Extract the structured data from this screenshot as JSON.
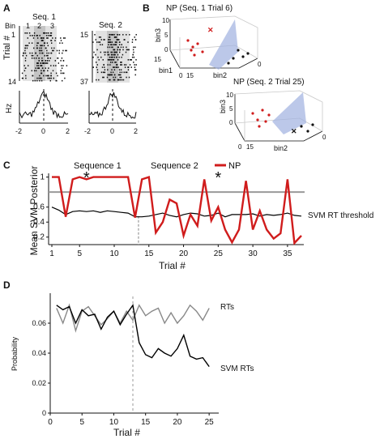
{
  "panel_letters": {
    "a": "A",
    "b": "B",
    "c": "C",
    "d": "D"
  },
  "panel_a": {
    "seq1_title": "Seq. 1",
    "seq2_title": "Seq. 2",
    "bin_label": "Bin",
    "bin_numbers": [
      "1",
      "2",
      "3"
    ],
    "trial_axis_label": "Trial #",
    "seq1_trial_ticks": [
      "1",
      "14"
    ],
    "seq2_trial_ticks": [
      "15",
      "37"
    ],
    "hz_label": "Hz",
    "x_ticks": [
      "-2",
      "0",
      "2"
    ]
  },
  "panel_b": {
    "plot1_title": "NP (Seq. 1 Trial 6)",
    "plot2_title": "NP (Seq. 2 Trial 25)",
    "axis_bin1": "bin1",
    "axis_bin2": "bin2",
    "axis_bin3": "bin3",
    "tick_0": "0",
    "tick_5": "5",
    "tick_10": "10",
    "tick_15": "15"
  },
  "panel_c": {
    "label_seq1": "Sequence 1",
    "label_seq2": "Sequence 2",
    "legend_np": "NP",
    "threshold_label": "SVM RT threshold",
    "star": "*"
  },
  "panel_d": {
    "label_rts": "RTs",
    "label_svm_rts": "SVM RTs"
  },
  "colors": {
    "np": "#d01c1c",
    "svm": "#000000",
    "threshold": "#9a9a9a",
    "rts": "#888888",
    "shade_light": "#e2e2e2",
    "shade_dark": "#c4c4c4",
    "plane": "#9fb0e0"
  },
  "chart_data": [
    {
      "type": "line",
      "panel": "C",
      "xlabel": "Trial #",
      "ylabel": "Mean SVM Posterior",
      "xlim": [
        1,
        37
      ],
      "ylim": [
        0.1,
        1.05
      ],
      "xticks": [
        1,
        5,
        10,
        15,
        20,
        25,
        30,
        35
      ],
      "yticks": [
        0.2,
        0.4,
        0.6,
        1
      ],
      "threshold": 0.8,
      "sequence_boundary": 13.5,
      "star_trials": [
        6,
        25
      ],
      "x": [
        1,
        2,
        3,
        4,
        5,
        6,
        7,
        8,
        9,
        10,
        11,
        12,
        13,
        14,
        15,
        16,
        17,
        18,
        19,
        20,
        21,
        22,
        23,
        24,
        25,
        26,
        27,
        28,
        29,
        30,
        31,
        32,
        33,
        34,
        35,
        36,
        37
      ],
      "series": [
        {
          "name": "NP",
          "values": [
            1.0,
            1.0,
            0.47,
            0.97,
            1.0,
            0.97,
            1.0,
            1.0,
            1.0,
            1.0,
            1.0,
            1.0,
            0.46,
            0.97,
            1.0,
            0.26,
            0.4,
            0.7,
            0.65,
            0.22,
            0.5,
            0.35,
            0.97,
            0.42,
            0.6,
            0.3,
            0.13,
            0.3,
            0.95,
            0.3,
            0.55,
            0.3,
            0.18,
            0.25,
            0.97,
            0.12,
            0.22
          ]
        },
        {
          "values": [
            0.6,
            0.56,
            0.5,
            0.54,
            0.55,
            0.54,
            0.55,
            0.53,
            0.55,
            0.54,
            0.53,
            0.52,
            0.47,
            0.47,
            0.48,
            0.5,
            0.52,
            0.49,
            0.47,
            0.5,
            0.52,
            0.51,
            0.48,
            0.49,
            0.52,
            0.47,
            0.5,
            0.5,
            0.5,
            0.51,
            0.48,
            0.5,
            0.49,
            0.5,
            0.52,
            0.49,
            0.48
          ]
        }
      ]
    },
    {
      "type": "line",
      "panel": "D",
      "xlabel": "Trial #",
      "ylabel": "Probability",
      "xlim": [
        0,
        26
      ],
      "ylim": [
        0,
        0.08
      ],
      "xticks": [
        0,
        5,
        10,
        15,
        20,
        25
      ],
      "yticks": [
        0,
        0.02,
        0.04,
        0.06
      ],
      "sequence_boundary": 13,
      "x": [
        1,
        2,
        3,
        4,
        5,
        6,
        7,
        8,
        9,
        10,
        11,
        12,
        13,
        14,
        15,
        16,
        17,
        18,
        19,
        20,
        21,
        22,
        23,
        24,
        25
      ],
      "series": [
        {
          "name": "RTs",
          "values": [
            0.07,
            0.06,
            0.072,
            0.055,
            0.068,
            0.071,
            0.065,
            0.059,
            0.063,
            0.068,
            0.06,
            0.068,
            0.062,
            0.072,
            0.065,
            0.068,
            0.07,
            0.06,
            0.067,
            0.06,
            0.065,
            0.072,
            0.068,
            0.062,
            0.07
          ]
        },
        {
          "name": "SVM RTs",
          "values": [
            0.072,
            0.069,
            0.071,
            0.06,
            0.069,
            0.065,
            0.066,
            0.056,
            0.064,
            0.068,
            0.059,
            0.066,
            0.072,
            0.047,
            0.039,
            0.037,
            0.043,
            0.04,
            0.038,
            0.043,
            0.052,
            0.038,
            0.036,
            0.037,
            0.031
          ]
        }
      ]
    }
  ]
}
